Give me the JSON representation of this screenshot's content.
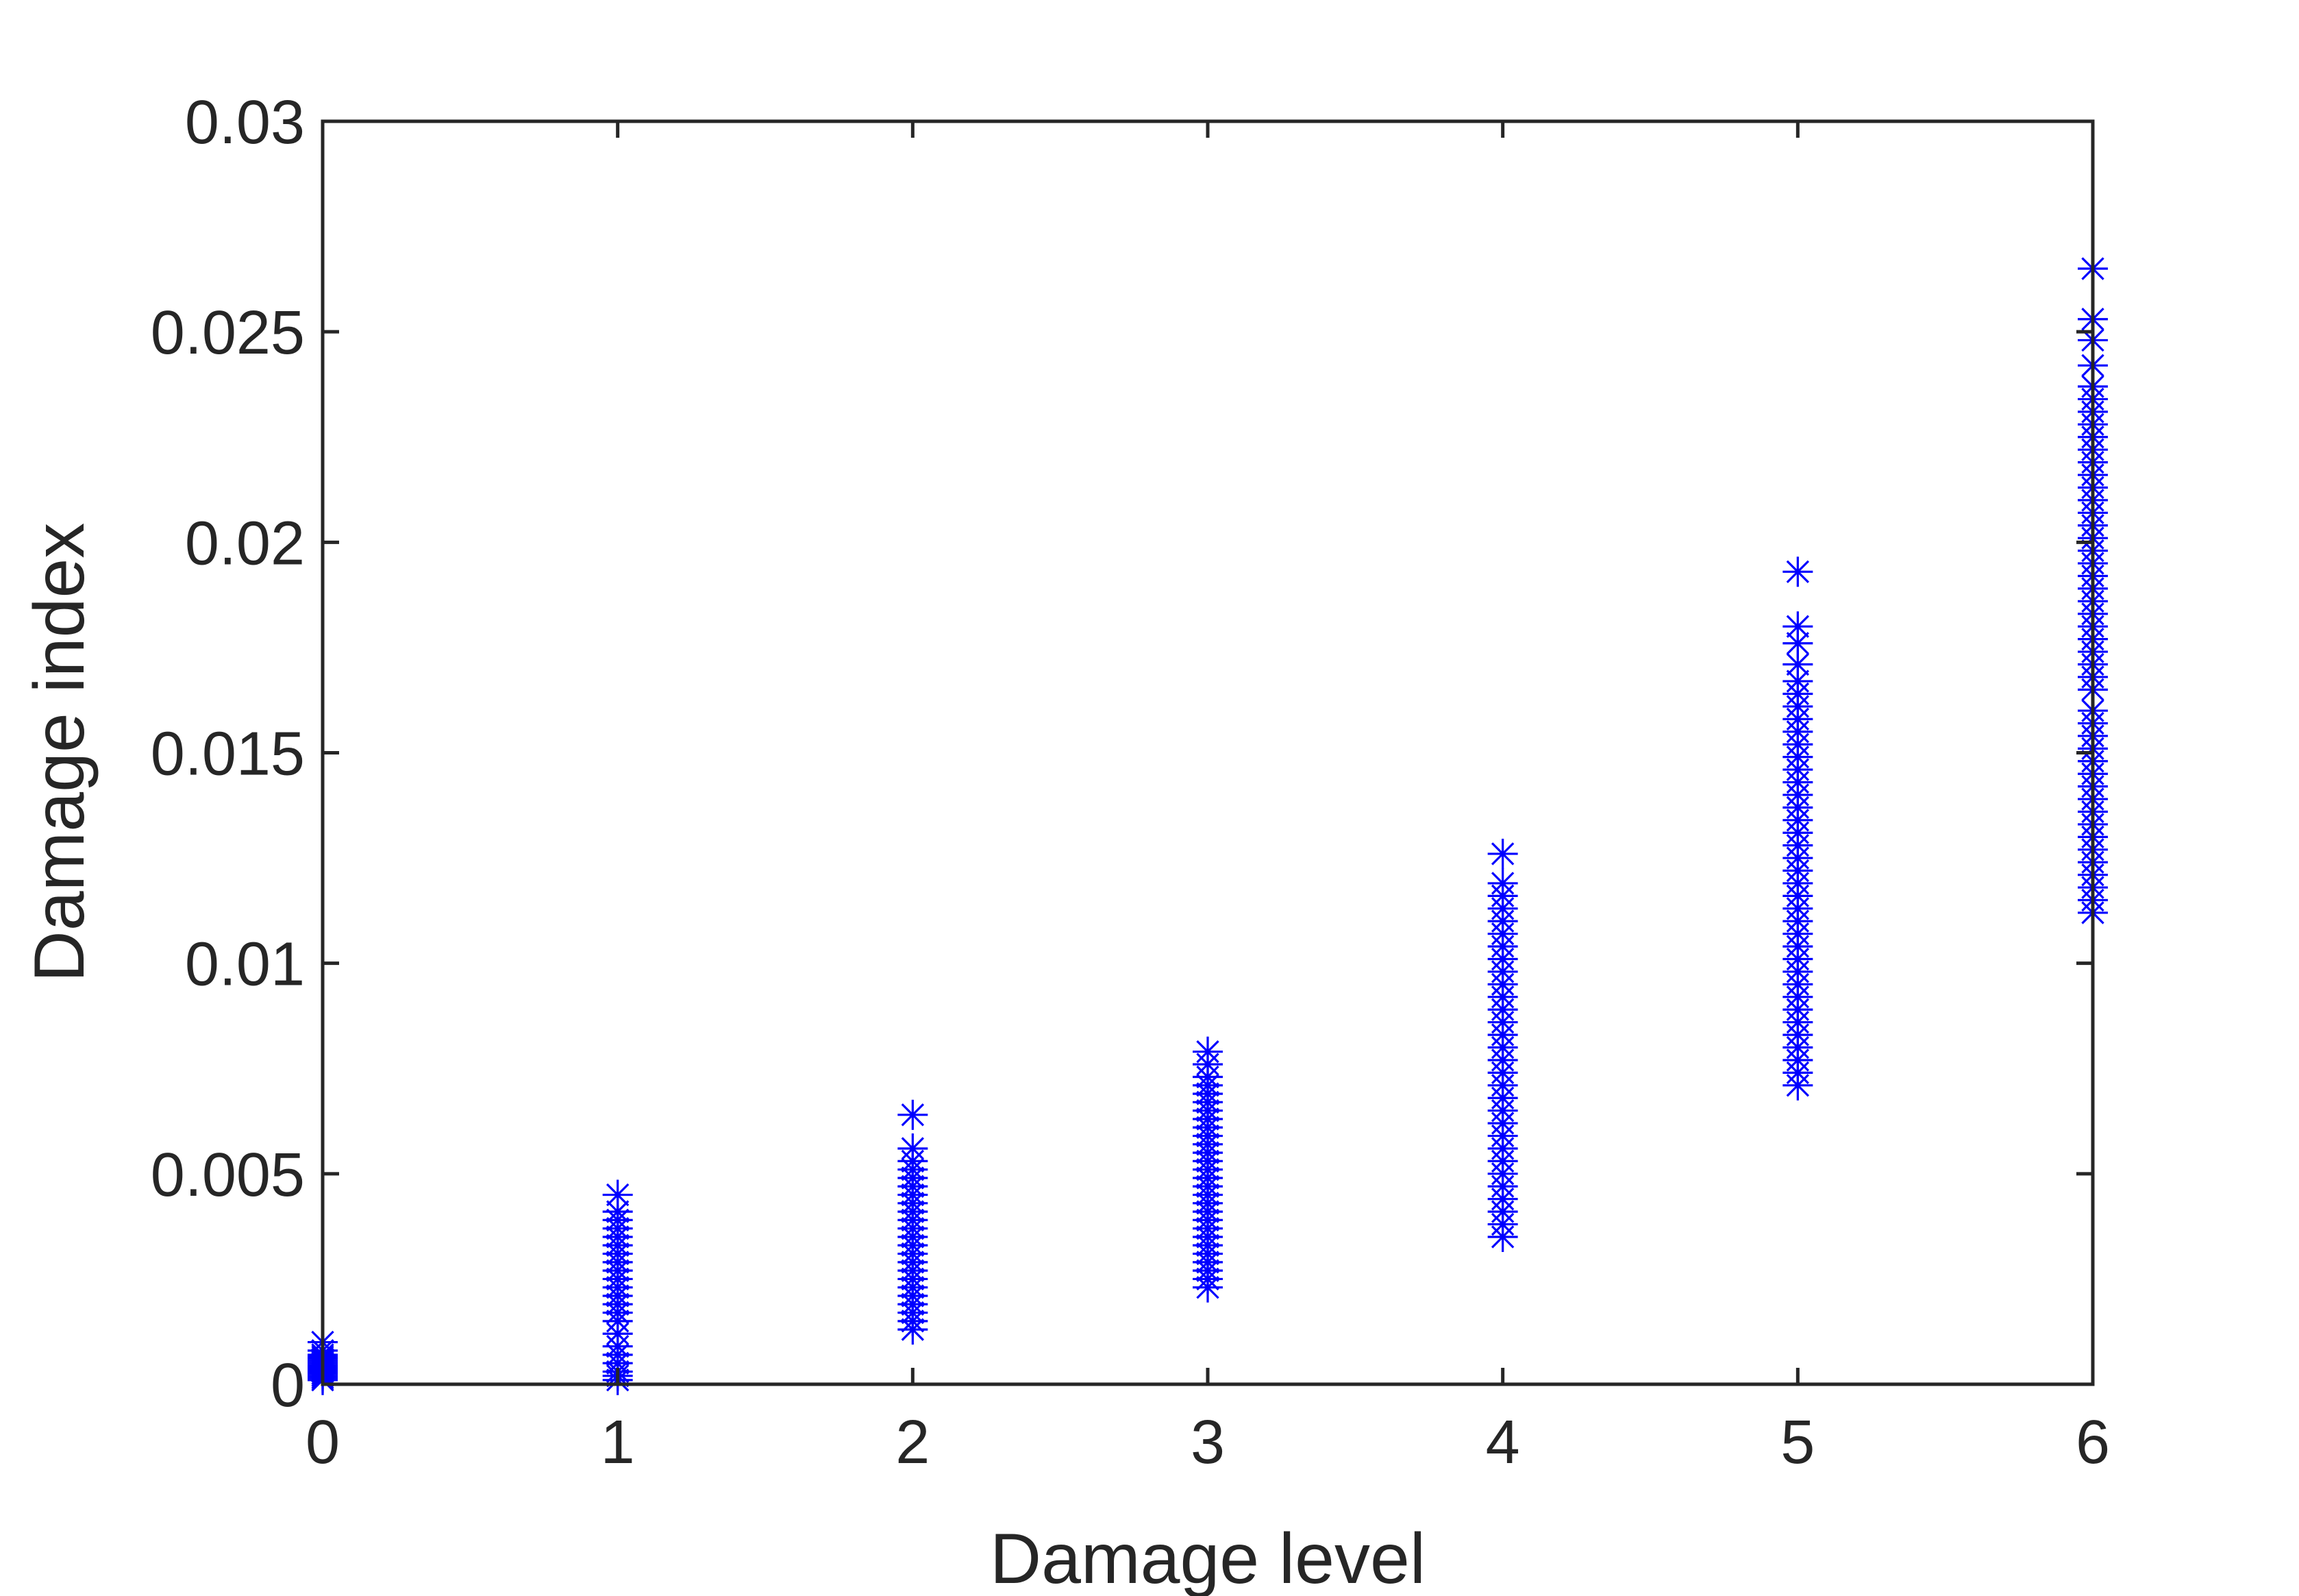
{
  "chart_data": {
    "type": "scatter",
    "title": "",
    "xlabel": "Damage level",
    "ylabel": "Damage index",
    "xlim": [
      0,
      6
    ],
    "ylim": [
      0,
      0.03
    ],
    "x_ticks": [
      0,
      1,
      2,
      3,
      4,
      5,
      6
    ],
    "x_tick_labels": [
      "0",
      "1",
      "2",
      "3",
      "4",
      "5",
      "6"
    ],
    "y_ticks": [
      0,
      0.005,
      0.01,
      0.015,
      0.02,
      0.025,
      0.03
    ],
    "y_tick_labels": [
      "0",
      "0.005",
      "0.01",
      "0.015",
      "0.02",
      "0.025",
      "0.03"
    ],
    "grid": false,
    "legend": "none",
    "marker": "asterisk",
    "color": "#0000ff",
    "series": [
      {
        "x": 0,
        "values": [
          0.0001,
          0.00015,
          0.0002,
          0.00025,
          0.0003,
          0.00035,
          0.0004,
          0.00045,
          0.0005,
          0.00055,
          0.0006,
          0.00065,
          0.0007,
          0.0008,
          0.001
        ]
      },
      {
        "x": 1,
        "values": [
          0.0001,
          0.0002,
          0.0003,
          0.0005,
          0.0007,
          0.0009,
          0.0012,
          0.0015,
          0.0017,
          0.0019,
          0.0021,
          0.0023,
          0.0025,
          0.0027,
          0.0029,
          0.0031,
          0.0033,
          0.0035,
          0.0037,
          0.0039,
          0.0041,
          0.0045
        ]
      },
      {
        "x": 2,
        "values": [
          0.0013,
          0.0015,
          0.0017,
          0.0019,
          0.0021,
          0.0023,
          0.0025,
          0.0027,
          0.0029,
          0.0031,
          0.0033,
          0.0035,
          0.0037,
          0.0039,
          0.0041,
          0.0043,
          0.0045,
          0.0047,
          0.0049,
          0.0051,
          0.0053,
          0.0056,
          0.0064
        ]
      },
      {
        "x": 3,
        "values": [
          0.0023,
          0.0025,
          0.0027,
          0.0029,
          0.0031,
          0.0033,
          0.0035,
          0.0037,
          0.0039,
          0.0041,
          0.0043,
          0.0045,
          0.0047,
          0.0049,
          0.0051,
          0.0053,
          0.0055,
          0.0057,
          0.0059,
          0.0061,
          0.0063,
          0.0065,
          0.0067,
          0.0069,
          0.0071,
          0.0073,
          0.0076,
          0.0079
        ]
      },
      {
        "x": 4,
        "values": [
          0.0035,
          0.0038,
          0.0041,
          0.0044,
          0.0047,
          0.005,
          0.0053,
          0.0056,
          0.0059,
          0.0062,
          0.0065,
          0.0068,
          0.0071,
          0.0074,
          0.0077,
          0.008,
          0.0083,
          0.0086,
          0.0089,
          0.0092,
          0.0095,
          0.0098,
          0.0101,
          0.0104,
          0.0107,
          0.011,
          0.0113,
          0.0116,
          0.0119,
          0.0126
        ]
      },
      {
        "x": 5,
        "values": [
          0.0071,
          0.0074,
          0.0077,
          0.008,
          0.0083,
          0.0086,
          0.0089,
          0.0092,
          0.0095,
          0.0098,
          0.0101,
          0.0104,
          0.0107,
          0.011,
          0.0113,
          0.0116,
          0.0119,
          0.0122,
          0.0125,
          0.0128,
          0.0131,
          0.0134,
          0.0137,
          0.014,
          0.0143,
          0.0146,
          0.0149,
          0.0152,
          0.0155,
          0.0158,
          0.0161,
          0.0164,
          0.0167,
          0.0171,
          0.0176,
          0.018,
          0.0193
        ]
      },
      {
        "x": 6,
        "values": [
          0.0112,
          0.0115,
          0.0118,
          0.0121,
          0.0124,
          0.0127,
          0.013,
          0.0133,
          0.0136,
          0.0139,
          0.0142,
          0.0145,
          0.0148,
          0.0151,
          0.0154,
          0.0157,
          0.016,
          0.0165,
          0.0168,
          0.0171,
          0.0174,
          0.0177,
          0.018,
          0.0183,
          0.0186,
          0.0189,
          0.0192,
          0.0195,
          0.0198,
          0.0201,
          0.0204,
          0.0207,
          0.021,
          0.0213,
          0.0216,
          0.0219,
          0.0222,
          0.0225,
          0.0228,
          0.0231,
          0.0234,
          0.0237,
          0.0242,
          0.0248,
          0.0253,
          0.0265
        ]
      }
    ]
  }
}
